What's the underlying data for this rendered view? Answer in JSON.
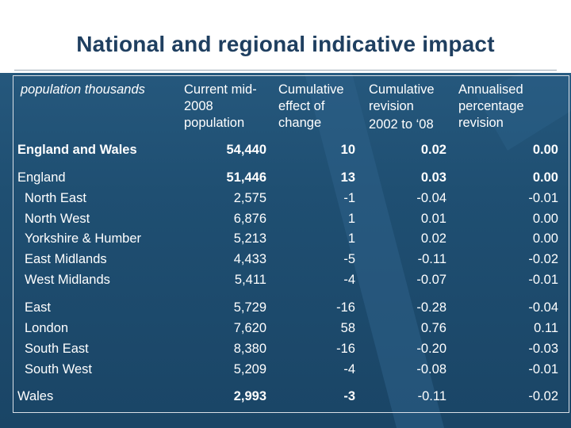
{
  "slide": {
    "title": "National and regional indicative impact"
  },
  "table": {
    "headers": [
      [
        "population thousands"
      ],
      [
        "Current mid-",
        "2008",
        "population"
      ],
      [
        "Cumulative",
        "effect of",
        "change"
      ],
      [
        "Cumulative",
        "revision",
        "2002 to ‘08"
      ],
      [
        "Annualised",
        "percentage",
        "revision"
      ]
    ],
    "rows": [
      {
        "label": "England and Wales",
        "values": [
          "54,440",
          "10",
          "0.02",
          "0.00"
        ],
        "bold": true
      },
      {
        "label": "England",
        "values": [
          "51,446",
          "13",
          "0.03",
          "0.00"
        ],
        "bold": true
      },
      {
        "label": "North East",
        "values": [
          "2,575",
          "-1",
          "-0.04",
          "-0.01"
        ]
      },
      {
        "label": "North West",
        "values": [
          "6,876",
          "1",
          "0.01",
          "0.00"
        ]
      },
      {
        "label": "Yorkshire & Humber",
        "values": [
          "5,213",
          "1",
          "0.02",
          "0.00"
        ]
      },
      {
        "label": "East Midlands",
        "values": [
          "4,433",
          "-5",
          "-0.11",
          "-0.02"
        ]
      },
      {
        "label": "West Midlands",
        "values": [
          "5,411",
          "-4",
          "-0.07",
          "-0.01"
        ]
      },
      {
        "label": "East",
        "values": [
          "5,729",
          "-16",
          "-0.28",
          "-0.04"
        ]
      },
      {
        "label": "London",
        "values": [
          "7,620",
          "58",
          "0.76",
          "0.11"
        ]
      },
      {
        "label": "South East",
        "values": [
          "8,380",
          "-16",
          "-0.20",
          "-0.03"
        ]
      },
      {
        "label": "South West",
        "values": [
          "5,209",
          "-4",
          "-0.08",
          "-0.01"
        ]
      },
      {
        "label": "Wales",
        "values": [
          "2,993",
          "-3",
          "-0.11",
          "-0.02"
        ],
        "bold": true
      }
    ]
  }
}
